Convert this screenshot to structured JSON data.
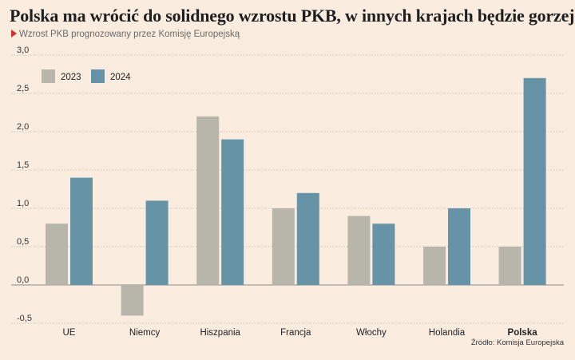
{
  "title": "Polska ma wrócić do solidnego wzrostu PKB, w innych krajach będzie gorzej",
  "subtitle": "Wzrost PKB prognozowany przez Komisję Europejską",
  "source": "Źródło: Komisja Europejska",
  "colors": {
    "background": "#faecdf",
    "series_2023": "#b8b5ab",
    "series_2024": "#6693a5",
    "grid": "#bdb7ae",
    "accent": "#d0312d"
  },
  "chart_data": {
    "type": "bar",
    "title": "Polska ma wrócić do solidnego wzrostu PKB, w innych krajach będzie gorzej",
    "xlabel": "",
    "ylabel": "",
    "categories": [
      "UE",
      "Niemcy",
      "Hiszpania",
      "Francja",
      "Włochy",
      "Holandia",
      "Polska"
    ],
    "highlight_category": "Polska",
    "series": [
      {
        "name": "2023",
        "values": [
          0.8,
          -0.4,
          2.2,
          1.0,
          0.9,
          0.5,
          0.5
        ]
      },
      {
        "name": "2024",
        "values": [
          1.4,
          1.1,
          1.9,
          1.2,
          0.8,
          1.0,
          2.7
        ]
      }
    ],
    "ylim": [
      -0.5,
      3.0
    ],
    "yticks": [
      "3,0",
      "2,5",
      "2,0",
      "1,5",
      "1,0",
      "0,5",
      "0,0",
      "-0,5"
    ],
    "ytick_values": [
      3.0,
      2.5,
      2.0,
      1.5,
      1.0,
      0.5,
      0.0,
      -0.5
    ],
    "grid": true,
    "legend_position": "top-left"
  }
}
